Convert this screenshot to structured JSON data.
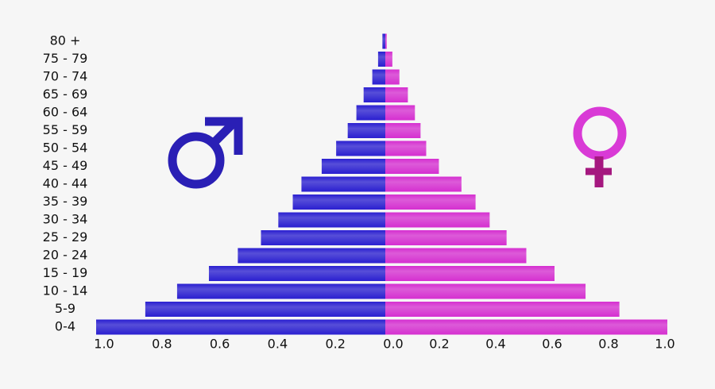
{
  "chart_data": {
    "type": "pyramid",
    "categories": [
      "0-4",
      "5-9",
      "10 - 14",
      "15 - 19",
      "20 - 24",
      "25 - 29",
      "30 - 34",
      "35 - 39",
      "40 - 44",
      "45 - 49",
      "50 - 54",
      "55 - 59",
      "60 - 64",
      "65 - 69",
      "70 - 74",
      "75 - 79",
      "80 +"
    ],
    "series": [
      {
        "color": "#2a1fd0",
        "values": [
          1.0,
          0.83,
          0.72,
          0.61,
          0.51,
          0.43,
          0.37,
          0.32,
          0.29,
          0.22,
          0.17,
          0.13,
          0.1,
          0.075,
          0.045,
          0.025,
          0.01
        ]
      },
      {
        "color": "#d52fd0",
        "values": [
          1.0,
          0.83,
          0.71,
          0.6,
          0.5,
          0.43,
          0.37,
          0.32,
          0.27,
          0.19,
          0.145,
          0.125,
          0.105,
          0.08,
          0.05,
          0.025,
          0.005
        ]
      }
    ],
    "xlim": [
      1,
      0
    ],
    "xticks": [
      {
        "value": 1,
        "label": "1.0"
      },
      {
        "value": 0.8,
        "label": "0.8"
      },
      {
        "value": 0.6,
        "label": "0.6"
      },
      {
        "value": 0.4,
        "label": "0.4"
      },
      {
        "value": 0.2,
        "label": "0.2"
      },
      {
        "value": 0,
        "label": "0.0"
      }
    ],
    "x2lim": [
      0,
      1
    ],
    "x2ticks": [
      {
        "value": 0.2,
        "label": "0.2"
      },
      {
        "value": 0.4,
        "label": "0.4"
      },
      {
        "value": 0.6,
        "label": "0.6"
      },
      {
        "value": 0.8,
        "label": "0.8"
      },
      {
        "value": 1,
        "label": "1.0"
      }
    ]
  }
}
